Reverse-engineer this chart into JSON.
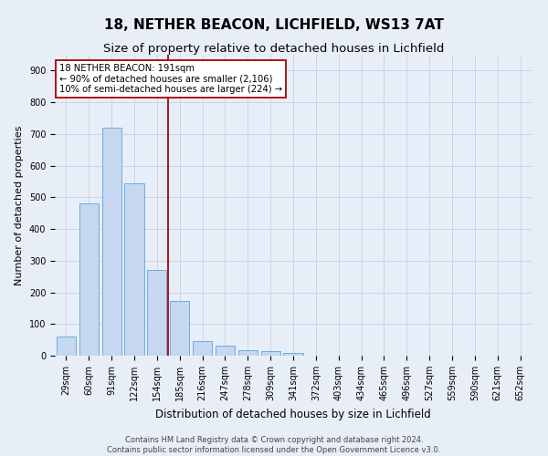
{
  "title": "18, NETHER BEACON, LICHFIELD, WS13 7AT",
  "subtitle": "Size of property relative to detached houses in Lichfield",
  "xlabel": "Distribution of detached houses by size in Lichfield",
  "ylabel": "Number of detached properties",
  "categories": [
    "29sqm",
    "60sqm",
    "91sqm",
    "122sqm",
    "154sqm",
    "185sqm",
    "216sqm",
    "247sqm",
    "278sqm",
    "309sqm",
    "341sqm",
    "372sqm",
    "403sqm",
    "434sqm",
    "465sqm",
    "496sqm",
    "527sqm",
    "559sqm",
    "590sqm",
    "621sqm",
    "652sqm"
  ],
  "values": [
    60,
    480,
    720,
    543,
    272,
    172,
    47,
    32,
    17,
    14,
    8,
    0,
    0,
    0,
    0,
    0,
    0,
    0,
    0,
    0,
    0
  ],
  "bar_color": "#c5d8f0",
  "bar_edge_color": "#6aaee0",
  "background_color": "#e8eef8",
  "grid_color": "#c8d0e0",
  "vline_x": 4.5,
  "vline_color": "#aa0000",
  "annotation_text": "18 NETHER BEACON: 191sqm\n← 90% of detached houses are smaller (2,106)\n10% of semi-detached houses are larger (224) →",
  "annotation_box_color": "#ffffff",
  "annotation_box_edge": "#aa0000",
  "ylim": [
    0,
    950
  ],
  "yticks": [
    0,
    100,
    200,
    300,
    400,
    500,
    600,
    700,
    800,
    900
  ],
  "footer": "Contains HM Land Registry data © Crown copyright and database right 2024.\nContains public sector information licensed under the Open Government Licence v3.0.",
  "title_fontsize": 11,
  "subtitle_fontsize": 9.5,
  "xlabel_fontsize": 8.5,
  "ylabel_fontsize": 8,
  "tick_fontsize": 7,
  "footer_fontsize": 6
}
